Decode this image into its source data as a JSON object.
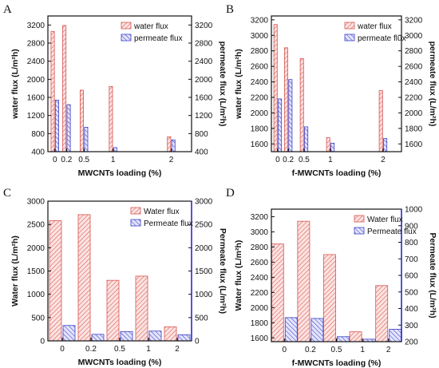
{
  "chart_data": [
    {
      "panel": "A",
      "type": "bar",
      "categories": [
        "0",
        "0.2",
        "0.5",
        "1",
        "2"
      ],
      "x": [
        0,
        0.2,
        0.5,
        1,
        2
      ],
      "xlabel": "MWCNTs loading (%)",
      "ylabel": "water flux (L/m²h)",
      "y2label": "permeate flux (L/m²h)",
      "ylim": [
        400,
        3400
      ],
      "y2lim": [
        400,
        3400
      ],
      "yticks": [
        400,
        800,
        1200,
        1600,
        2000,
        2400,
        2800,
        3200
      ],
      "y2ticks": [
        400,
        800,
        1200,
        1600,
        2000,
        2400,
        2800,
        3200
      ],
      "series": [
        {
          "name": "water flux",
          "axis": "left",
          "values": [
            3060,
            3190,
            1760,
            1840,
            730
          ]
        },
        {
          "name": "permeate flux",
          "axis": "right",
          "values": [
            1540,
            1440,
            940,
            490,
            660
          ]
        }
      ],
      "legend": "top-right",
      "style": "narrow"
    },
    {
      "panel": "B",
      "type": "bar",
      "categories": [
        "0",
        "0.2",
        "0.5",
        "1",
        "2"
      ],
      "x": [
        0,
        0.2,
        0.5,
        1,
        2
      ],
      "xlabel": "f-MWCNTs loading (%)",
      "ylabel": "water flux (L/m²h)",
      "y2label": "permeate flux (L/m²h)",
      "ylim": [
        1500,
        3250
      ],
      "y2lim": [
        1500,
        3250
      ],
      "yticks": [
        1600,
        1800,
        2000,
        2200,
        2400,
        2600,
        2800,
        3000,
        3200
      ],
      "y2ticks": [
        1600,
        1800,
        2000,
        2200,
        2400,
        2600,
        2800,
        3000,
        3200
      ],
      "series": [
        {
          "name": "water flux",
          "axis": "left",
          "values": [
            3140,
            2840,
            2700,
            1680,
            2290
          ]
        },
        {
          "name": "permeate flux",
          "axis": "right",
          "values": [
            2180,
            2430,
            1820,
            1610,
            1670
          ]
        }
      ],
      "legend": "top-right",
      "style": "narrow"
    },
    {
      "panel": "C",
      "type": "bar",
      "categories": [
        "0",
        "0.2",
        "0.5",
        "1",
        "2"
      ],
      "xlabel": "MWCNTs loading (%)",
      "ylabel": "Water flux (L/m²h)",
      "y2label": "Permeate flux (L/m²h)",
      "ylim": [
        0,
        3000
      ],
      "y2lim": [
        0,
        3000
      ],
      "yticks": [
        0,
        500,
        1000,
        1500,
        2000,
        2500,
        3000
      ],
      "y2ticks": [
        0,
        500,
        1000,
        1500,
        2000,
        2500,
        3000
      ],
      "series": [
        {
          "name": "Water flux",
          "axis": "left",
          "values": [
            2580,
            2710,
            1300,
            1390,
            300
          ]
        },
        {
          "name": "Permeate flux",
          "axis": "right",
          "values": [
            330,
            140,
            200,
            210,
            130
          ]
        }
      ],
      "legend": "top-right",
      "style": "wide"
    },
    {
      "panel": "D",
      "type": "bar",
      "categories": [
        "0",
        "0.2",
        "0.5",
        "1",
        "2"
      ],
      "xlabel": "f-MWCNTs loading (%)",
      "ylabel": "Water flux (L/m²h)",
      "y2label": "Permeate flux (L/m²h)",
      "ylim": [
        1550,
        3300
      ],
      "y2lim": [
        200,
        1000
      ],
      "yticks": [
        1600,
        1800,
        2000,
        2200,
        2400,
        2600,
        2800,
        3000,
        3200
      ],
      "y2ticks": [
        200,
        300,
        400,
        500,
        600,
        700,
        800,
        900,
        1000
      ],
      "series": [
        {
          "name": "Water flux",
          "axis": "left",
          "values": [
            2840,
            3140,
            2700,
            1680,
            2290
          ]
        },
        {
          "name": "Permeate flux",
          "axis": "right",
          "values": [
            345,
            340,
            230,
            215,
            275
          ]
        }
      ],
      "legend": "top-right",
      "style": "wide"
    }
  ],
  "colors": {
    "water": "#d9534f",
    "water_fill": "#fbe3e1",
    "permeate": "#3b3fc9",
    "permeate_fill": "#e3e4fb",
    "axis": "#111111",
    "right_axis_blue": "#2222cc"
  }
}
